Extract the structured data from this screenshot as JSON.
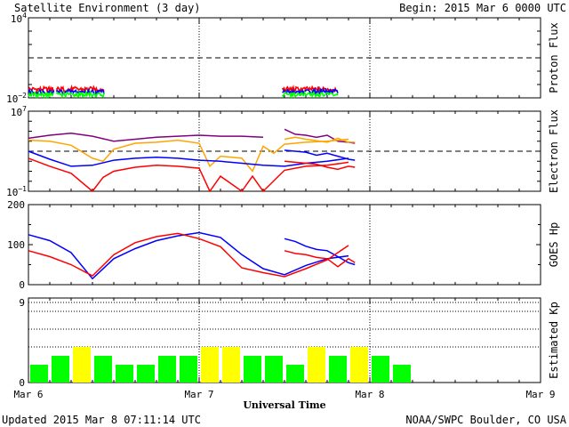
{
  "header": {
    "title": "Satellite Environment (3 day)",
    "begin": "Begin:  2015 Mar 6 0000 UTC"
  },
  "footer": {
    "updated": "Updated 2015 Mar  8 07:11:14 UTC",
    "credit": "NOAA/SWPC Boulder, CO USA"
  },
  "x_axis": {
    "label": "Universal Time",
    "ticks": [
      "Mar 6",
      "Mar 7",
      "Mar 8",
      "Mar 9"
    ]
  },
  "chart_data": [
    {
      "type": "line",
      "name": "proton",
      "ylabel": "Proton Flux",
      "yscale": "log",
      "ylim_exp": [
        -2,
        4
      ],
      "ytick_exp": [
        -2,
        4
      ],
      "threshold_exp": 1,
      "colors": {
        "red": "#ff0000",
        "blue": "#0000ff",
        "green": "#00ff00"
      },
      "segments": [
        [
          0.0,
          1.21
        ],
        [
          1.3,
          3.55
        ],
        [
          11.9,
          14.5
        ]
      ],
      "series": [
        {
          "color": "red",
          "level_exp": -1.35
        },
        {
          "color": "blue",
          "level_exp": -1.55
        },
        {
          "color": "green",
          "level_exp": -1.75
        }
      ]
    },
    {
      "type": "line",
      "name": "electron",
      "ylabel": "Electron Flux",
      "yscale": "log",
      "ylim_exp": [
        -1,
        7
      ],
      "ytick_exp": [
        -1,
        7
      ],
      "threshold_exp": 3,
      "colors": {
        "purple": "#800080",
        "orange": "#ffa500",
        "blue": "#0000ff",
        "red": "#ff0000"
      },
      "series": [
        {
          "color": "purple",
          "segments": [
            [
              [
                0,
                4.3
              ],
              [
                1,
                4.6
              ],
              [
                2,
                4.8
              ],
              [
                3,
                4.5
              ],
              [
                4,
                4.0
              ],
              [
                5,
                4.2
              ],
              [
                6,
                4.4
              ],
              [
                7,
                4.5
              ],
              [
                8,
                4.6
              ],
              [
                9,
                4.5
              ],
              [
                10,
                4.5
              ],
              [
                11,
                4.4
              ]
            ],
            [
              [
                12,
                5.2
              ],
              [
                12.5,
                4.7
              ],
              [
                13,
                4.6
              ],
              [
                13.5,
                4.4
              ],
              [
                14,
                4.6
              ],
              [
                14.5,
                4.0
              ],
              [
                15,
                3.9
              ],
              [
                15.3,
                3.8
              ]
            ]
          ]
        },
        {
          "color": "orange",
          "segments": [
            [
              [
                0,
                4.1
              ],
              [
                1,
                4.0
              ],
              [
                2,
                3.6
              ],
              [
                3,
                2.3
              ],
              [
                3.5,
                2.0
              ],
              [
                4,
                3.2
              ],
              [
                5,
                3.8
              ],
              [
                6,
                3.9
              ],
              [
                7,
                4.1
              ],
              [
                8,
                3.8
              ],
              [
                8.5,
                1.5
              ],
              [
                9,
                2.5
              ],
              [
                10,
                2.3
              ],
              [
                10.5,
                1.0
              ],
              [
                11,
                3.5
              ],
              [
                11.5,
                2.8
              ],
              [
                12,
                3.7
              ],
              [
                13,
                3.9
              ],
              [
                14,
                4.0
              ],
              [
                15,
                4.2
              ]
            ],
            [
              [
                12,
                4.2
              ],
              [
                12.5,
                4.4
              ],
              [
                13,
                4.2
              ],
              [
                14,
                3.9
              ],
              [
                14.5,
                4.3
              ],
              [
                15,
                3.9
              ],
              [
                15.3,
                3.9
              ]
            ]
          ]
        },
        {
          "color": "blue",
          "segments": [
            [
              [
                0,
                3.0
              ],
              [
                1,
                2.2
              ],
              [
                2,
                1.5
              ],
              [
                3,
                1.6
              ],
              [
                4,
                2.1
              ],
              [
                5,
                2.3
              ],
              [
                6,
                2.4
              ],
              [
                7,
                2.3
              ],
              [
                8,
                2.1
              ],
              [
                9,
                2.0
              ],
              [
                10,
                1.8
              ],
              [
                11,
                1.6
              ],
              [
                12,
                1.5
              ],
              [
                13,
                1.8
              ],
              [
                14,
                2.0
              ],
              [
                15,
                2.3
              ]
            ],
            [
              [
                12,
                3.1
              ],
              [
                12.5,
                3.0
              ],
              [
                13,
                2.9
              ],
              [
                13.5,
                2.6
              ],
              [
                14,
                2.8
              ],
              [
                14.5,
                2.5
              ],
              [
                15,
                2.2
              ],
              [
                15.3,
                2.1
              ]
            ]
          ]
        },
        {
          "color": "red",
          "segments": [
            [
              [
                0,
                2.3
              ],
              [
                1,
                1.5
              ],
              [
                2,
                0.8
              ],
              [
                3,
                -1.0
              ],
              [
                3.5,
                0.4
              ],
              [
                4,
                1.0
              ],
              [
                5,
                1.4
              ],
              [
                6,
                1.6
              ],
              [
                7,
                1.5
              ],
              [
                8,
                1.3
              ],
              [
                8.5,
                -1.0
              ],
              [
                9,
                0.5
              ],
              [
                10,
                -1.0
              ],
              [
                10.5,
                0.5
              ],
              [
                11,
                -1.0
              ],
              [
                12,
                1.1
              ],
              [
                13,
                1.5
              ],
              [
                14,
                1.6
              ],
              [
                15,
                1.9
              ]
            ],
            [
              [
                12,
                2.0
              ],
              [
                12.5,
                1.9
              ],
              [
                13,
                1.8
              ],
              [
                13.5,
                1.7
              ],
              [
                14,
                1.4
              ],
              [
                14.5,
                1.2
              ],
              [
                15,
                1.5
              ],
              [
                15.3,
                1.4
              ]
            ]
          ]
        }
      ]
    },
    {
      "type": "line",
      "name": "hp",
      "ylabel": "GOES Hp",
      "ylim": [
        0,
        200
      ],
      "yticks": [
        0,
        100,
        200
      ],
      "colors": {
        "blue": "#0000ff",
        "red": "#ff0000"
      },
      "series": [
        {
          "color": "blue",
          "segments": [
            [
              [
                0,
                125
              ],
              [
                1,
                110
              ],
              [
                2,
                80
              ],
              [
                3,
                15
              ],
              [
                4,
                65
              ],
              [
                5,
                90
              ],
              [
                6,
                110
              ],
              [
                7,
                122
              ],
              [
                8,
                130
              ],
              [
                9,
                118
              ],
              [
                10,
                75
              ],
              [
                11,
                40
              ],
              [
                12,
                25
              ],
              [
                13,
                48
              ],
              [
                14,
                65
              ],
              [
                15,
                72
              ]
            ],
            [
              [
                12,
                115
              ],
              [
                12.5,
                108
              ],
              [
                13,
                96
              ],
              [
                13.5,
                88
              ],
              [
                14,
                85
              ],
              [
                14.5,
                70
              ],
              [
                15,
                55
              ],
              [
                15.3,
                50
              ]
            ]
          ]
        },
        {
          "color": "red",
          "segments": [
            [
              [
                0,
                85
              ],
              [
                1,
                70
              ],
              [
                2,
                50
              ],
              [
                3,
                22
              ],
              [
                4,
                75
              ],
              [
                5,
                105
              ],
              [
                6,
                120
              ],
              [
                7,
                128
              ],
              [
                8,
                115
              ],
              [
                9,
                95
              ],
              [
                10,
                42
              ],
              [
                11,
                30
              ],
              [
                12,
                20
              ],
              [
                13,
                40
              ],
              [
                14,
                62
              ],
              [
                15,
                98
              ]
            ],
            [
              [
                12,
                85
              ],
              [
                12.5,
                78
              ],
              [
                13,
                75
              ],
              [
                13.5,
                68
              ],
              [
                14,
                65
              ],
              [
                14.5,
                45
              ],
              [
                15,
                65
              ],
              [
                15.3,
                55
              ]
            ]
          ]
        }
      ]
    },
    {
      "type": "bar",
      "name": "kp",
      "ylabel": "Estimated Kp",
      "ylim": [
        0,
        9
      ],
      "yticks": [
        0,
        9
      ],
      "gridlines": [
        4,
        6,
        8,
        9
      ],
      "colors": {
        "green": "#00ff00",
        "yellow": "#ffff00"
      },
      "categories": [
        "00",
        "03",
        "06",
        "09",
        "12",
        "15",
        "18",
        "21",
        "00",
        "03",
        "06",
        "09",
        "12",
        "15",
        "18",
        "21",
        "00",
        "03",
        "06"
      ],
      "values": [
        2,
        3,
        4,
        3,
        2,
        2,
        3,
        3,
        4,
        4,
        3,
        3,
        2,
        4,
        3,
        4,
        3,
        2,
        null
      ],
      "bar_colors": [
        "green",
        "green",
        "yellow",
        "green",
        "green",
        "green",
        "green",
        "green",
        "yellow",
        "yellow",
        "green",
        "green",
        "green",
        "yellow",
        "green",
        "yellow",
        "green",
        "green",
        null
      ]
    }
  ]
}
